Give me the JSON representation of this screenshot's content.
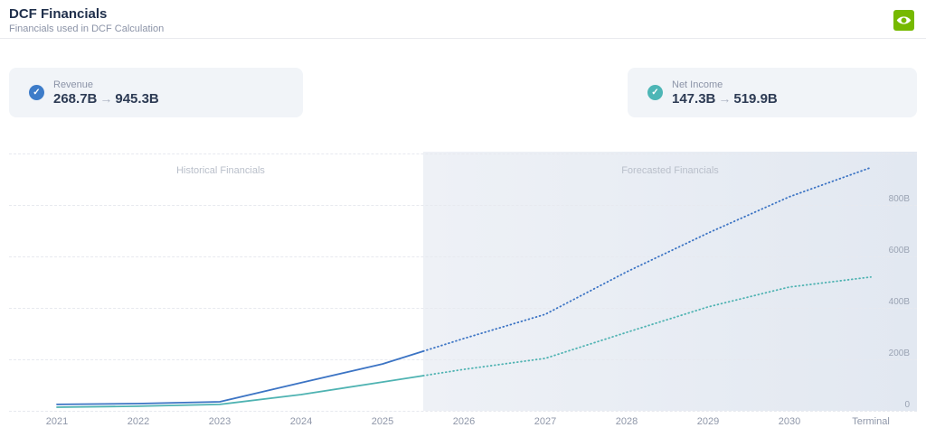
{
  "header": {
    "title": "DCF Financials",
    "subtitle": "Financials used in DCF Calculation",
    "logo": "nvidia-logo",
    "brand_color": "#76b900"
  },
  "metrics": [
    {
      "label": "Revenue",
      "current": "268.7B",
      "arrow": "→",
      "projected": "945.3B",
      "check_color": "#3d7cc9",
      "check_glyph": "✓"
    },
    {
      "label": "Net Income",
      "current": "147.3B",
      "arrow": "→",
      "projected": "519.9B",
      "check_color": "#4db6b6",
      "check_glyph": "✓"
    }
  ],
  "chart_data": {
    "type": "line",
    "title": "DCF Financials",
    "unit": "USD billions",
    "x": [
      "2021",
      "2022",
      "2023",
      "2024",
      "2025",
      "2026",
      "2027",
      "2028",
      "2029",
      "2030",
      "Terminal"
    ],
    "series": [
      {
        "name": "Revenue",
        "color": "#3c74c4",
        "values": [
          25,
          28,
          35,
          109,
          182,
          281,
          375,
          540,
          691,
          832,
          945.3
        ]
      },
      {
        "name": "Net Income",
        "color": "#4fb3b2",
        "values": [
          14,
          18,
          25,
          63,
          112,
          161,
          204,
          305,
          404,
          481,
          519.9
        ]
      }
    ],
    "forecast_start_index": 5,
    "line_style": {
      "historical": "solid",
      "forecast": "dotted"
    },
    "regions": [
      {
        "label": "Historical Financials"
      },
      {
        "label": "Forecasted Financials"
      }
    ],
    "y_ticks": [
      {
        "label": "800B",
        "value": 800
      },
      {
        "label": "600B",
        "value": 600
      },
      {
        "label": "400B",
        "value": 400
      },
      {
        "label": "200B",
        "value": 200
      },
      {
        "label": "0",
        "value": 0
      }
    ],
    "ylim": [
      0,
      1000
    ],
    "grid": "horizontal-dashed",
    "legend_position": "none"
  }
}
